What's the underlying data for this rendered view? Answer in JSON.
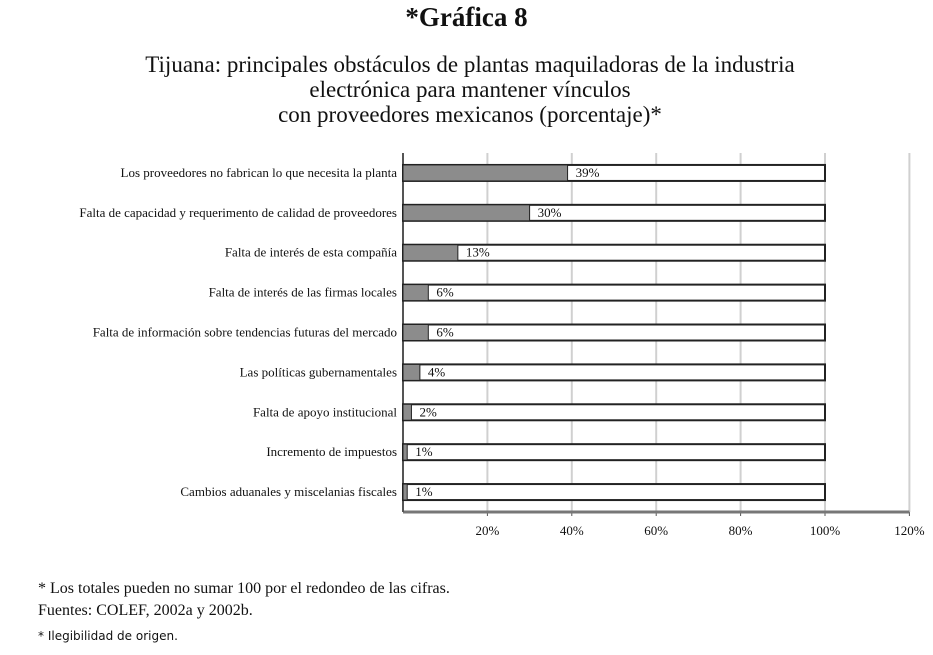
{
  "chart_data": {
    "type": "bar",
    "orientation": "horizontal",
    "stacked_to_100": true,
    "title": "*Gráfica 8",
    "subtitle": [
      "Tijuana: principales obstáculos de plantas maquiladoras de la industria",
      "electrónica para mantener vínculos",
      "con proveedores mexicanos (porcentaje)*"
    ],
    "categories": [
      "Los proveedores no fabrican lo que necesita la planta",
      "Falta de capacidad y requerimento de calidad de proveedores",
      "Falta de interés de esta compañía",
      "Falta de interés de las firmas locales",
      "Falta de información sobre tendencias futuras del mercado",
      "Las políticas gubernamentales",
      "Falta de apoyo institucional",
      "Incremento de impuestos",
      "Cambios aduanales y miscelanias fiscales"
    ],
    "values": [
      39,
      30,
      13,
      6,
      6,
      4,
      2,
      1,
      1
    ],
    "data_labels": [
      "39%",
      "30%",
      "13%",
      "6%",
      "6%",
      "4%",
      "2%",
      "1%",
      "1%"
    ],
    "xlim": [
      0,
      120
    ],
    "xticks": [
      "20%",
      "40%",
      "60%",
      "80%",
      "100%",
      "120%"
    ],
    "xtick_values": [
      20,
      40,
      60,
      80,
      100,
      120
    ],
    "grid": true,
    "colors": {
      "value": "#8c8c8c",
      "remainder": "#ffffff",
      "grid": "#d0d0d0"
    }
  },
  "footnotes": {
    "line1": "* Los totales pueden no sumar 100 por el redondeo de las cifras.",
    "line2": "Fuentes: COLEF, 2002a y 2002b.",
    "line3": "* Ilegibilidad de origen."
  }
}
